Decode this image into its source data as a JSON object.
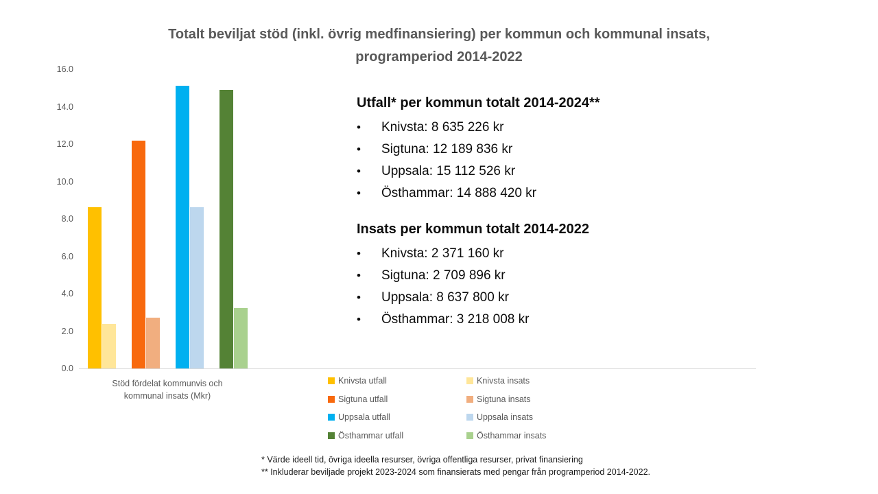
{
  "title": {
    "line1": "Totalt beviljat stöd (inkl. övrig medfinansiering) per kommun och kommunal insats,",
    "line2": "programperiod 2014-2022"
  },
  "chart_data": {
    "type": "bar",
    "title": "Totalt beviljat stöd (inkl. övrig medfinansiering) per kommun och kommunal insats, programperiod 2014-2022",
    "unit": "Mkr",
    "categories": [
      "Stöd fördelat kommunvis och kommunal insats (Mkr)"
    ],
    "xlabel_lines": [
      "Stöd fördelat kommunvis och",
      "kommunal insats (Mkr)"
    ],
    "ylabel": "",
    "ylim": [
      0,
      16
    ],
    "grid": false,
    "legend_position": "bottom, two columns",
    "yticks": [
      {
        "value": 0,
        "label": "0.0"
      },
      {
        "value": 2,
        "label": "2.0"
      },
      {
        "value": 4,
        "label": "4.0"
      },
      {
        "value": 6,
        "label": "6.0"
      },
      {
        "value": 8,
        "label": "8.0"
      },
      {
        "value": 10,
        "label": "10.0"
      },
      {
        "value": 12,
        "label": "12.0"
      },
      {
        "value": 14,
        "label": "14.0"
      },
      {
        "value": 16,
        "label": "16.0"
      }
    ],
    "series": [
      {
        "name": "Knivsta utfall",
        "group": "Knivsta",
        "value": 8.635,
        "color": "#FFC000"
      },
      {
        "name": "Knivsta insats",
        "group": "Knivsta",
        "value": 2.371,
        "color": "#FFE699"
      },
      {
        "name": "Sigtuna utfall",
        "group": "Sigtuna",
        "value": 12.19,
        "color": "#F8690D"
      },
      {
        "name": "Sigtuna insats",
        "group": "Sigtuna",
        "value": 2.71,
        "color": "#F1AE7F"
      },
      {
        "name": "Uppsala utfall",
        "group": "Uppsala",
        "value": 15.113,
        "color": "#00B0F0"
      },
      {
        "name": "Uppsala insats",
        "group": "Uppsala",
        "value": 8.638,
        "color": "#BDD7EE"
      },
      {
        "name": "Östhammar utfall",
        "group": "Östhammar",
        "value": 14.888,
        "color": "#548235"
      },
      {
        "name": "Östhammar insats",
        "group": "Östhammar",
        "value": 3.218,
        "color": "#A9D18E"
      }
    ]
  },
  "legend": {
    "columns": [
      {
        "items": [
          "Knivsta utfall",
          "Sigtuna utfall",
          "Uppsala utfall",
          "Östhammar utfall"
        ]
      },
      {
        "items": [
          "Knivsta insats",
          "Sigtuna insats",
          "Uppsala insats",
          "Östhammar insats"
        ]
      }
    ]
  },
  "panels": {
    "bullet_char": "•",
    "utfall": {
      "heading": "Utfall* per kommun totalt 2014-2024**",
      "items": [
        "Knivsta: 8 635 226 kr",
        "Sigtuna: 12 189 836 kr",
        "Uppsala: 15 112 526 kr",
        "Östhammar: 14 888 420 kr"
      ]
    },
    "insats": {
      "heading": "Insats per kommun totalt 2014-2022",
      "items": [
        "Knivsta: 2 371 160 kr",
        "Sigtuna: 2 709 896 kr",
        "Uppsala: 8 637 800 kr",
        "Östhammar: 3 218 008 kr"
      ]
    }
  },
  "footnotes": {
    "line1": "* Värde ideell tid, övriga ideella resurser, övriga offentliga resurser, privat finansiering",
    "line2": "** Inkluderar beviljade projekt 2023-2024 som finansierats med pengar från programperiod 2014-2022."
  },
  "colors": {
    "title_text": "#595959",
    "axis_text": "#595959",
    "legend_text": "#595959",
    "axis_line": "#D9D9D9",
    "body_text": "#0D0D0D",
    "background": "#FFFFFF"
  }
}
